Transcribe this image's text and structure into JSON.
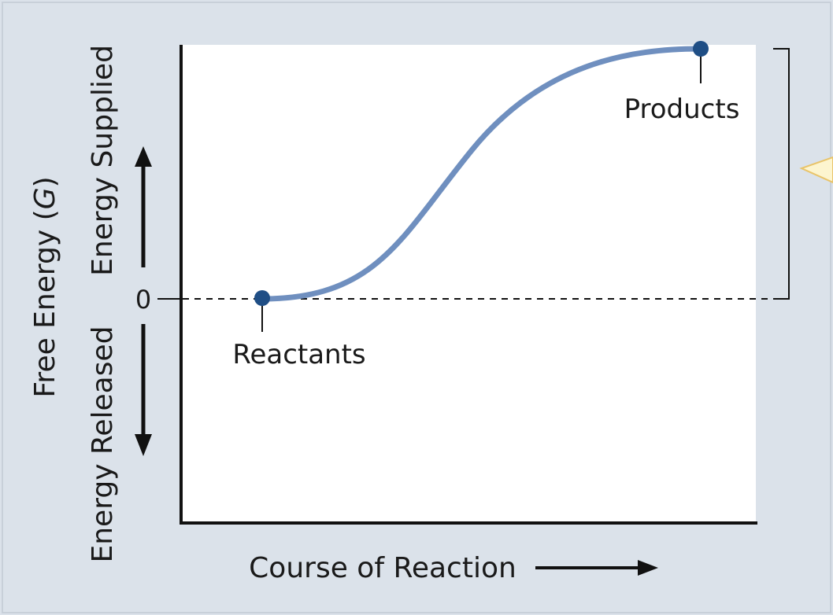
{
  "colors": {
    "panel_background": "#dbe2ea",
    "panel_border": "#c8d0d9",
    "plot_background": "#ffffff",
    "axis_line": "#111111",
    "curve": "#6f8fbf",
    "point": "#1f4e85",
    "callout_fill": "#fdf5cf",
    "callout_border": "#e9c46a"
  },
  "diagram": {
    "y_axis_title": "Free Energy (",
    "y_axis_title_symbol": "G",
    "y_axis_title_close": ")",
    "y_upper_label": "Energy Supplied",
    "y_lower_label": "Energy Released",
    "zero_label": "0",
    "x_axis_title": "Course of Reaction",
    "reactants_label": "Reactants",
    "products_label": "Products"
  },
  "chart_data": {
    "type": "line",
    "xlabel": "Course of Reaction",
    "ylabel": "Free Energy (G)",
    "zero_line": 0,
    "start_point": "Reactants",
    "end_point": "Products",
    "trend": "free energy rises from reactants at 0 to products above 0 (energy supplied)"
  }
}
